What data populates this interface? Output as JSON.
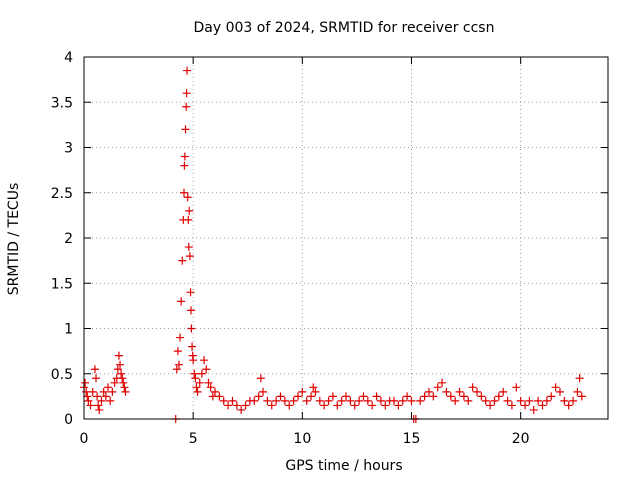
{
  "chart_data": {
    "type": "scatter",
    "title": "Day 003 of 2024, SRMTID for receiver ccsn",
    "xlabel": "GPS time / hours",
    "ylabel": "SRMTID / TECUs",
    "xlim": [
      0,
      24
    ],
    "ylim": [
      0,
      4
    ],
    "x_ticks": [
      0,
      5,
      10,
      15,
      20
    ],
    "x_tick_labels": [
      "0",
      "5",
      "10",
      "15",
      "20"
    ],
    "y_ticks": [
      0,
      0.5,
      1,
      1.5,
      2,
      2.5,
      3,
      3.5,
      4
    ],
    "y_tick_labels": [
      "0",
      "0.5",
      "1",
      "1.5",
      "2",
      "2.5",
      "3",
      "3.5",
      "4"
    ],
    "grid": true,
    "marker": "+",
    "marker_color": "#e00000",
    "series": [
      {
        "name": "SRMTID",
        "color": "#e00000",
        "x": [
          0.0,
          0.05,
          0.1,
          0.15,
          0.2,
          0.3,
          0.4,
          0.5,
          0.55,
          0.6,
          0.65,
          0.7,
          0.8,
          0.9,
          1.0,
          1.1,
          1.2,
          1.3,
          1.4,
          1.5,
          1.55,
          1.6,
          1.65,
          1.7,
          1.75,
          1.8,
          1.85,
          1.9,
          4.2,
          4.25,
          4.3,
          4.35,
          4.4,
          4.45,
          4.5,
          4.55,
          4.58,
          4.6,
          4.62,
          4.65,
          4.68,
          4.7,
          4.72,
          4.75,
          4.78,
          4.8,
          4.82,
          4.85,
          4.88,
          4.9,
          4.92,
          4.95,
          4.98,
          5.0,
          5.05,
          5.1,
          5.15,
          5.2,
          5.3,
          5.4,
          5.5,
          5.6,
          5.7,
          5.8,
          5.9,
          6.0,
          6.2,
          6.4,
          6.6,
          6.8,
          7.0,
          7.2,
          7.4,
          7.6,
          7.8,
          8.0,
          8.1,
          8.2,
          8.4,
          8.6,
          8.8,
          9.0,
          9.2,
          9.4,
          9.6,
          9.8,
          10.0,
          10.2,
          10.4,
          10.5,
          10.6,
          10.8,
          11.0,
          11.2,
          11.4,
          11.6,
          11.8,
          12.0,
          12.2,
          12.4,
          12.6,
          12.8,
          13.0,
          13.2,
          13.4,
          13.6,
          13.8,
          14.0,
          14.2,
          14.4,
          14.6,
          14.8,
          15.0,
          15.1,
          15.2,
          15.4,
          15.6,
          15.8,
          16.0,
          16.2,
          16.4,
          16.6,
          16.8,
          17.0,
          17.2,
          17.4,
          17.6,
          17.8,
          18.0,
          18.2,
          18.4,
          18.6,
          18.8,
          19.0,
          19.2,
          19.4,
          19.6,
          19.8,
          20.0,
          20.2,
          20.4,
          20.6,
          20.8,
          21.0,
          21.2,
          21.4,
          21.6,
          21.8,
          22.0,
          22.2,
          22.4,
          22.6,
          22.7,
          22.8
        ],
        "y": [
          0.35,
          0.4,
          0.3,
          0.25,
          0.2,
          0.15,
          0.3,
          0.55,
          0.45,
          0.25,
          0.15,
          0.1,
          0.2,
          0.3,
          0.25,
          0.35,
          0.2,
          0.3,
          0.4,
          0.45,
          0.55,
          0.7,
          0.6,
          0.5,
          0.45,
          0.4,
          0.35,
          0.3,
          0.0,
          0.55,
          0.75,
          0.6,
          0.9,
          1.3,
          1.75,
          2.2,
          2.5,
          2.8,
          2.9,
          3.2,
          3.45,
          3.6,
          3.85,
          2.45,
          2.2,
          1.9,
          2.3,
          1.8,
          1.4,
          1.2,
          1.0,
          0.8,
          0.7,
          0.65,
          0.5,
          0.45,
          0.35,
          0.3,
          0.4,
          0.5,
          0.65,
          0.55,
          0.4,
          0.35,
          0.25,
          0.3,
          0.25,
          0.2,
          0.15,
          0.2,
          0.15,
          0.1,
          0.15,
          0.2,
          0.2,
          0.25,
          0.45,
          0.3,
          0.2,
          0.15,
          0.2,
          0.25,
          0.2,
          0.15,
          0.2,
          0.25,
          0.3,
          0.2,
          0.25,
          0.35,
          0.3,
          0.2,
          0.15,
          0.2,
          0.25,
          0.15,
          0.2,
          0.25,
          0.2,
          0.15,
          0.2,
          0.25,
          0.2,
          0.15,
          0.25,
          0.2,
          0.15,
          0.2,
          0.2,
          0.15,
          0.2,
          0.25,
          0.2,
          0.0,
          0.0,
          0.2,
          0.25,
          0.3,
          0.25,
          0.35,
          0.4,
          0.3,
          0.25,
          0.2,
          0.3,
          0.25,
          0.2,
          0.35,
          0.3,
          0.25,
          0.2,
          0.15,
          0.2,
          0.25,
          0.3,
          0.2,
          0.15,
          0.35,
          0.2,
          0.15,
          0.2,
          0.1,
          0.2,
          0.15,
          0.2,
          0.25,
          0.35,
          0.3,
          0.2,
          0.15,
          0.2,
          0.3,
          0.45,
          0.25
        ]
      }
    ]
  }
}
